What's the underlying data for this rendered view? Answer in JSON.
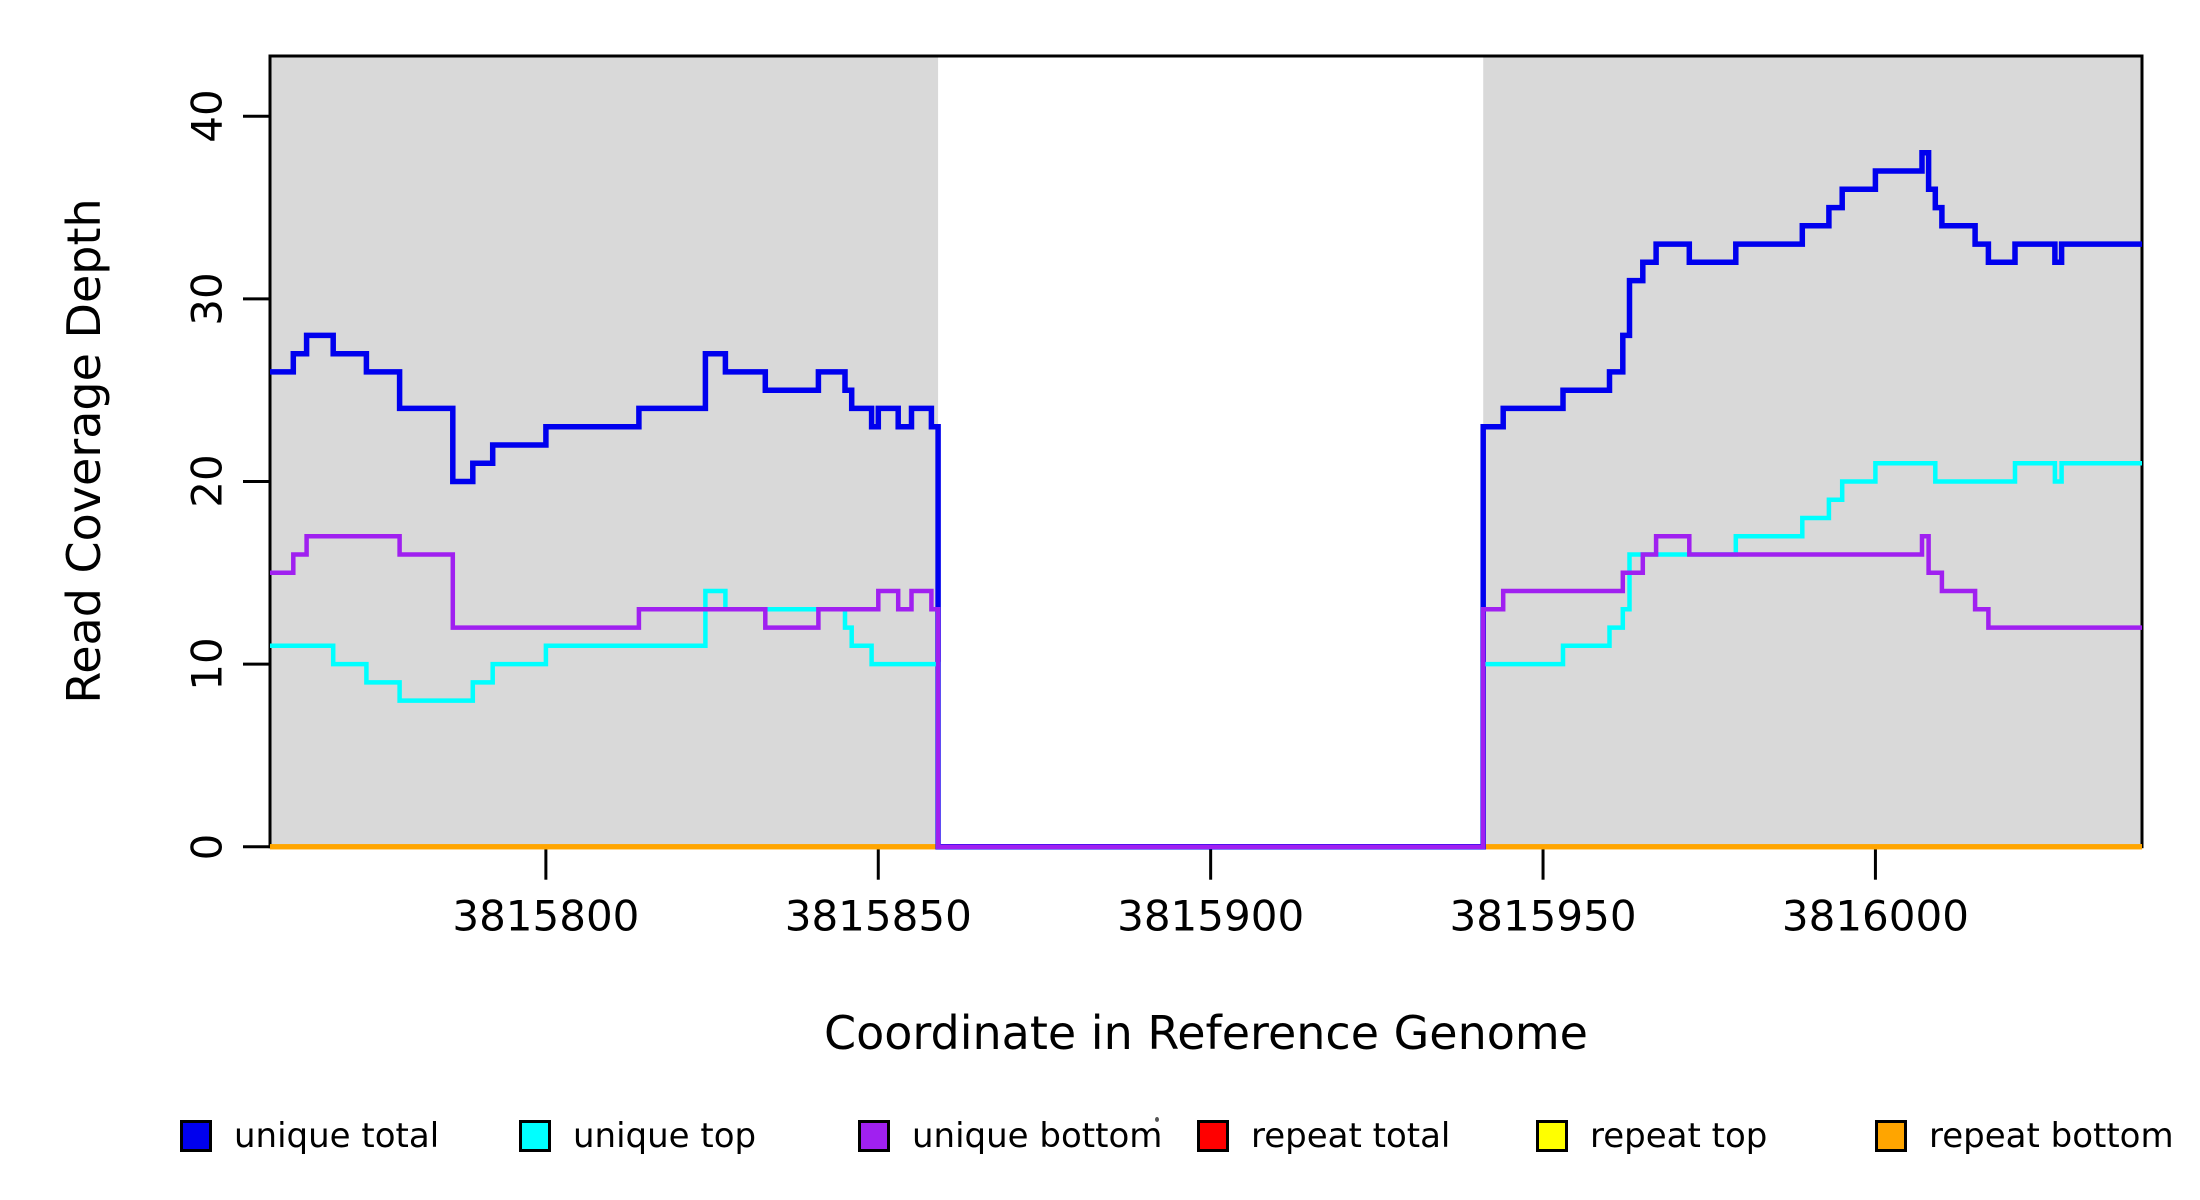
{
  "chart_data": {
    "type": "line",
    "subtype": "step-coverage-plot",
    "title": "",
    "xlabel": "Coordinate in Reference Genome",
    "ylabel": "Read Coverage Depth",
    "xlim": [
      3815758.5,
      3816040.1
    ],
    "ylim": [
      0,
      43.3
    ],
    "x_ticks": [
      3815800,
      3815850,
      3815900,
      3815950,
      3816000
    ],
    "y_ticks": [
      0,
      10,
      20,
      30,
      40
    ],
    "grid": false,
    "legend_position": "bottom",
    "background_color": "#ffffff",
    "plot_border_color": "#000000",
    "shaded_regions": [
      {
        "name": "left-covered-region",
        "x0": 3815758.5,
        "x1": 3815859,
        "color": "#d9d9d9"
      },
      {
        "name": "right-covered-region",
        "x0": 3815941,
        "x1": 3816040.1,
        "color": "#d9d9d9"
      }
    ],
    "series": [
      {
        "name": "repeat total",
        "color": "#ff0000",
        "line_width": 5,
        "xend": 3816040.1,
        "steps": [
          [
            3815758.5,
            0
          ]
        ]
      },
      {
        "name": "repeat top",
        "color": "#ffff00",
        "line_width": 5,
        "xend": 3816040.1,
        "steps": [
          [
            3815758.5,
            0
          ]
        ]
      },
      {
        "name": "repeat bottom",
        "color": "#ffa500",
        "line_width": 5,
        "xend": 3816040.1,
        "steps": [
          [
            3815758.5,
            0
          ]
        ]
      },
      {
        "name": "unique total",
        "color": "#0000ee",
        "line_width": 5.5,
        "xend": 3816040.1,
        "steps": [
          [
            3815758.5,
            26
          ],
          [
            3815762,
            27
          ],
          [
            3815764,
            28
          ],
          [
            3815768,
            27
          ],
          [
            3815773,
            26
          ],
          [
            3815778,
            24
          ],
          [
            3815786,
            20
          ],
          [
            3815789,
            21
          ],
          [
            3815792,
            22
          ],
          [
            3815800,
            23
          ],
          [
            3815814,
            24
          ],
          [
            3815824,
            27
          ],
          [
            3815827,
            26
          ],
          [
            3815833,
            25
          ],
          [
            3815841,
            26
          ],
          [
            3815845,
            25
          ],
          [
            3815846,
            24
          ],
          [
            3815849,
            23
          ],
          [
            3815850,
            24
          ],
          [
            3815853,
            23
          ],
          [
            3815855,
            24
          ],
          [
            3815858,
            23
          ],
          [
            3815859,
            0
          ],
          [
            3815941,
            23
          ],
          [
            3815944,
            24
          ],
          [
            3815953,
            25
          ],
          [
            3815960,
            26
          ],
          [
            3815962,
            28
          ],
          [
            3815963,
            31
          ],
          [
            3815965,
            32
          ],
          [
            3815967,
            33
          ],
          [
            3815972,
            32
          ],
          [
            3815979,
            33
          ],
          [
            3815989,
            34
          ],
          [
            3815993,
            35
          ],
          [
            3815995,
            36
          ],
          [
            3816000,
            37
          ],
          [
            3816007,
            38
          ],
          [
            3816008,
            36
          ],
          [
            3816009,
            35
          ],
          [
            3816010,
            34
          ],
          [
            3816015,
            33
          ],
          [
            3816017,
            32
          ],
          [
            3816021,
            33
          ],
          [
            3816027,
            32
          ],
          [
            3816028,
            33
          ]
        ]
      },
      {
        "name": "unique top",
        "color": "#00ffff",
        "line_width": 4.5,
        "xend": 3816040.1,
        "steps": [
          [
            3815758.5,
            11
          ],
          [
            3815768,
            10
          ],
          [
            3815773,
            9
          ],
          [
            3815778,
            8
          ],
          [
            3815789,
            9
          ],
          [
            3815792,
            10
          ],
          [
            3815800,
            11
          ],
          [
            3815824,
            14
          ],
          [
            3815827,
            13
          ],
          [
            3815845,
            12
          ],
          [
            3815846,
            11
          ],
          [
            3815849,
            10
          ],
          [
            3815859,
            0
          ],
          [
            3815941,
            10
          ],
          [
            3815953,
            11
          ],
          [
            3815960,
            12
          ],
          [
            3815962,
            13
          ],
          [
            3815963,
            16
          ],
          [
            3815979,
            17
          ],
          [
            3815989,
            18
          ],
          [
            3815993,
            19
          ],
          [
            3815995,
            20
          ],
          [
            3816000,
            21
          ],
          [
            3816009,
            20
          ],
          [
            3816021,
            21
          ],
          [
            3816027,
            20
          ],
          [
            3816028,
            21
          ]
        ]
      },
      {
        "name": "unique bottom",
        "color": "#a020f0",
        "line_width": 4.5,
        "xend": 3816040.1,
        "steps": [
          [
            3815758.5,
            15
          ],
          [
            3815762,
            16
          ],
          [
            3815764,
            17
          ],
          [
            3815778,
            16
          ],
          [
            3815786,
            12
          ],
          [
            3815814,
            13
          ],
          [
            3815833,
            12
          ],
          [
            3815841,
            13
          ],
          [
            3815850,
            14
          ],
          [
            3815853,
            13
          ],
          [
            3815855,
            14
          ],
          [
            3815858,
            13
          ],
          [
            3815859,
            0
          ],
          [
            3815941,
            13
          ],
          [
            3815944,
            14
          ],
          [
            3815962,
            15
          ],
          [
            3815965,
            16
          ],
          [
            3815967,
            17
          ],
          [
            3815972,
            16
          ],
          [
            3816007,
            17
          ],
          [
            3816008,
            15
          ],
          [
            3816010,
            14
          ],
          [
            3816015,
            13
          ],
          [
            3816017,
            12
          ]
        ]
      }
    ]
  },
  "legend": {
    "items": [
      {
        "name": "unique-total",
        "label": "unique total",
        "color": "#0000ee"
      },
      {
        "name": "unique-top",
        "label": "unique top",
        "color": "#00ffff"
      },
      {
        "name": "unique-bottom",
        "label": "unique bottom",
        "color": "#a020f0"
      },
      {
        "name": "repeat-total",
        "label": "repeat total",
        "color": "#ff0000"
      },
      {
        "name": "repeat-top",
        "label": "repeat top",
        "color": "#ffff00"
      },
      {
        "name": "repeat-bottom",
        "label": "repeat bottom",
        "color": "#ffa500"
      }
    ]
  }
}
